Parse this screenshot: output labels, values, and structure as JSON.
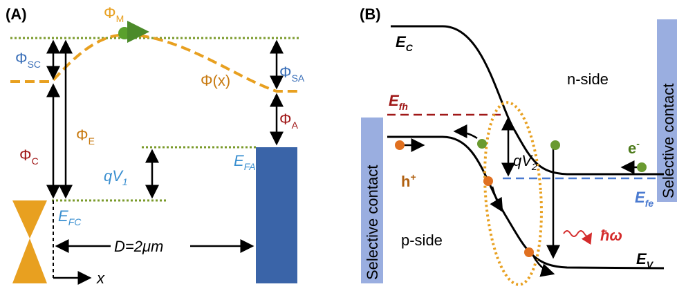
{
  "panel_a": {
    "tag": "(A)",
    "labels": {
      "phi_m": {
        "main": "Φ",
        "sub": "M"
      },
      "phi_sc": {
        "main": "Φ",
        "sub": "SC"
      },
      "phi_sa": {
        "main": "Φ",
        "sub": "SA"
      },
      "phi_x": {
        "main": "Φ(x)"
      },
      "phi_c": {
        "main": "Φ",
        "sub": "C"
      },
      "phi_e": {
        "main": "Φ",
        "sub": "E"
      },
      "phi_a": {
        "main": "Φ",
        "sub": "A"
      },
      "qv1": {
        "main": "qV",
        "sub": "1"
      },
      "efa": {
        "main": "E",
        "sub": "FA"
      },
      "efc": {
        "main": "E",
        "sub": "FC"
      },
      "distance": {
        "main": "D=2μm"
      },
      "x_axis": {
        "main": "x"
      }
    }
  },
  "panel_b": {
    "tag": "(B)",
    "labels": {
      "ec": {
        "main": "E",
        "sub": "C"
      },
      "n_side": {
        "main": "n-side"
      },
      "efh": {
        "main": "E",
        "sub": "fh"
      },
      "qv2": {
        "main": "qV",
        "sub": "2"
      },
      "electron": {
        "main": "e",
        "sup": "-"
      },
      "hole": {
        "main": "h",
        "sup": "+"
      },
      "efe": {
        "main": "E",
        "sub": "fe"
      },
      "p_side": {
        "main": "p-side"
      },
      "photon": {
        "main": "ħω"
      },
      "ev": {
        "main": "E",
        "sub": "V"
      },
      "contact_left": {
        "main": "Selective contact"
      },
      "contact_right": {
        "main": "Selective contact"
      }
    }
  }
}
